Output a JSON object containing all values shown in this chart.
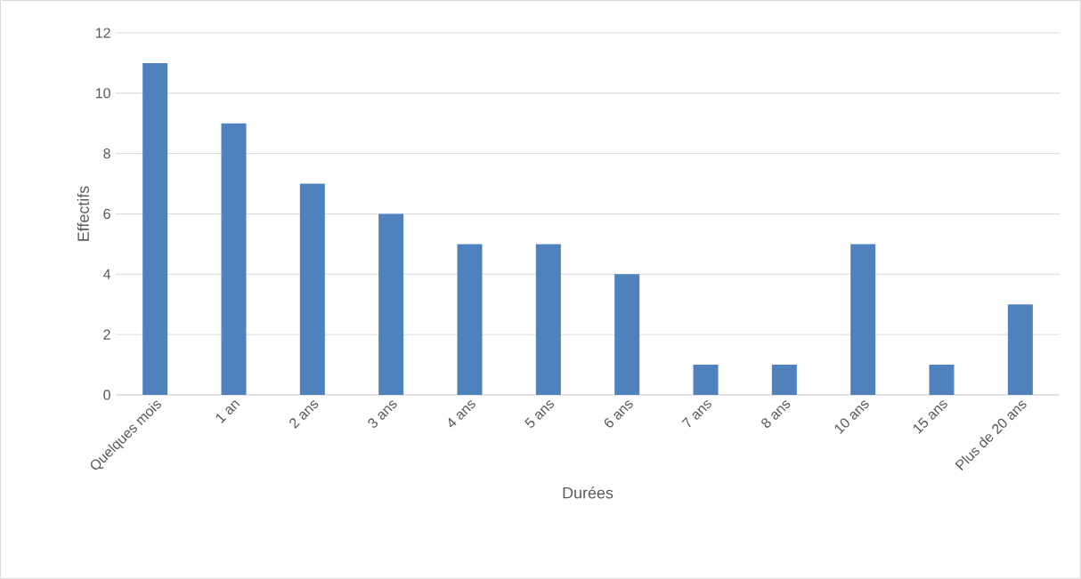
{
  "chart_data": {
    "type": "bar",
    "xlabel": "Durées",
    "ylabel": "Effectifs",
    "categories": [
      "Quelques mois",
      "1 an",
      "2 ans",
      "3 ans",
      "4 ans",
      "5 ans",
      "6 ans",
      "7 ans",
      "8 ans",
      "10 ans",
      "15 ans",
      "Plus de 20 ans"
    ],
    "values": [
      11,
      9,
      7,
      6,
      5,
      5,
      4,
      1,
      1,
      5,
      1,
      3
    ],
    "color": "#4f81bd",
    "ylim": [
      0,
      12
    ],
    "yticks": [
      0,
      2,
      4,
      6,
      8,
      10,
      12
    ],
    "grid": "y"
  }
}
